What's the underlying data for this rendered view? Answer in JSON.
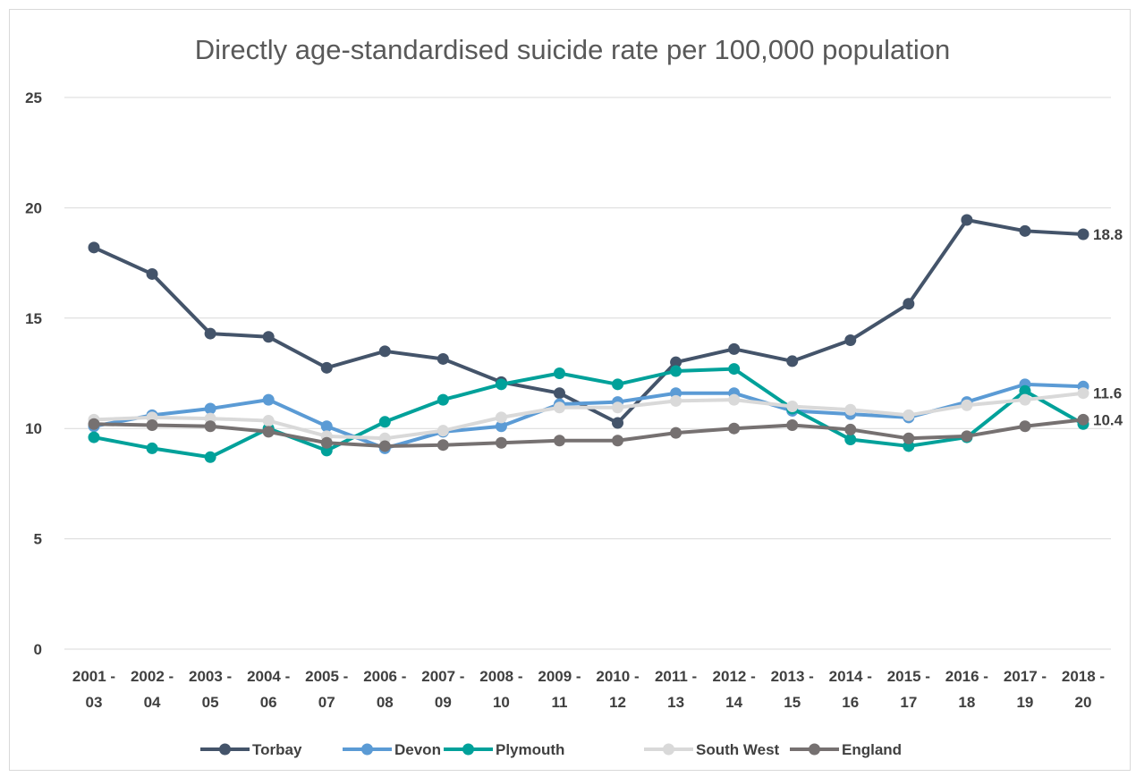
{
  "chart_data": {
    "type": "line",
    "title": "Directly age-standardised suicide rate per 100,000 population",
    "xlabel": "",
    "ylabel": "",
    "ylim": [
      0,
      25
    ],
    "yticks": [
      "0",
      "5",
      "10",
      "15",
      "20",
      "25"
    ],
    "grid": true,
    "legend_position": "bottom",
    "categories": [
      [
        "2001 -",
        "03"
      ],
      [
        "2002 -",
        "04"
      ],
      [
        "2003 -",
        "05"
      ],
      [
        "2004 -",
        "06"
      ],
      [
        "2005 -",
        "07"
      ],
      [
        "2006 -",
        "08"
      ],
      [
        "2007 -",
        "09"
      ],
      [
        "2008 -",
        "10"
      ],
      [
        "2009 -",
        "11"
      ],
      [
        "2010 -",
        "12"
      ],
      [
        "2011 -",
        "13"
      ],
      [
        "2012 -",
        "14"
      ],
      [
        "2013 -",
        "15"
      ],
      [
        "2014 -",
        "16"
      ],
      [
        "2015 -",
        "17"
      ],
      [
        "2016 -",
        "18"
      ],
      [
        "2017 -",
        "19"
      ],
      [
        "2018 -",
        "20"
      ]
    ],
    "series": [
      {
        "name": "Torbay",
        "color": "#44546a",
        "values": [
          18.2,
          17.0,
          14.3,
          14.15,
          12.75,
          13.5,
          13.15,
          12.1,
          11.6,
          10.25,
          13.0,
          13.6,
          13.05,
          14.0,
          15.65,
          19.45,
          18.95,
          18.8
        ],
        "end_label": "18.8"
      },
      {
        "name": "Devon",
        "color": "#5b9bd5",
        "values": [
          10.1,
          10.6,
          10.9,
          11.3,
          10.1,
          9.1,
          9.85,
          10.1,
          11.1,
          11.2,
          11.6,
          11.6,
          10.8,
          10.65,
          10.5,
          11.2,
          12.0,
          11.9
        ],
        "end_label": ""
      },
      {
        "name": "Plymouth",
        "color": "#00a19a",
        "values": [
          9.6,
          9.1,
          8.7,
          10.0,
          9.0,
          10.3,
          11.3,
          12.0,
          12.5,
          12.0,
          12.6,
          12.7,
          10.9,
          9.5,
          9.2,
          9.6,
          11.7,
          10.2
        ],
        "end_label": ""
      },
      {
        "name": "South West",
        "color": "#d9d9d9",
        "values": [
          10.4,
          10.5,
          10.45,
          10.35,
          9.65,
          9.55,
          9.9,
          10.5,
          10.95,
          10.95,
          11.25,
          11.3,
          11.0,
          10.85,
          10.6,
          11.05,
          11.3,
          11.6
        ],
        "end_label": "11.6"
      },
      {
        "name": "England",
        "color": "#767171",
        "values": [
          10.2,
          10.15,
          10.1,
          9.85,
          9.35,
          9.2,
          9.25,
          9.35,
          9.45,
          9.45,
          9.8,
          10.0,
          10.15,
          9.95,
          9.55,
          9.65,
          10.1,
          10.4
        ],
        "end_label": "10.4"
      }
    ]
  }
}
